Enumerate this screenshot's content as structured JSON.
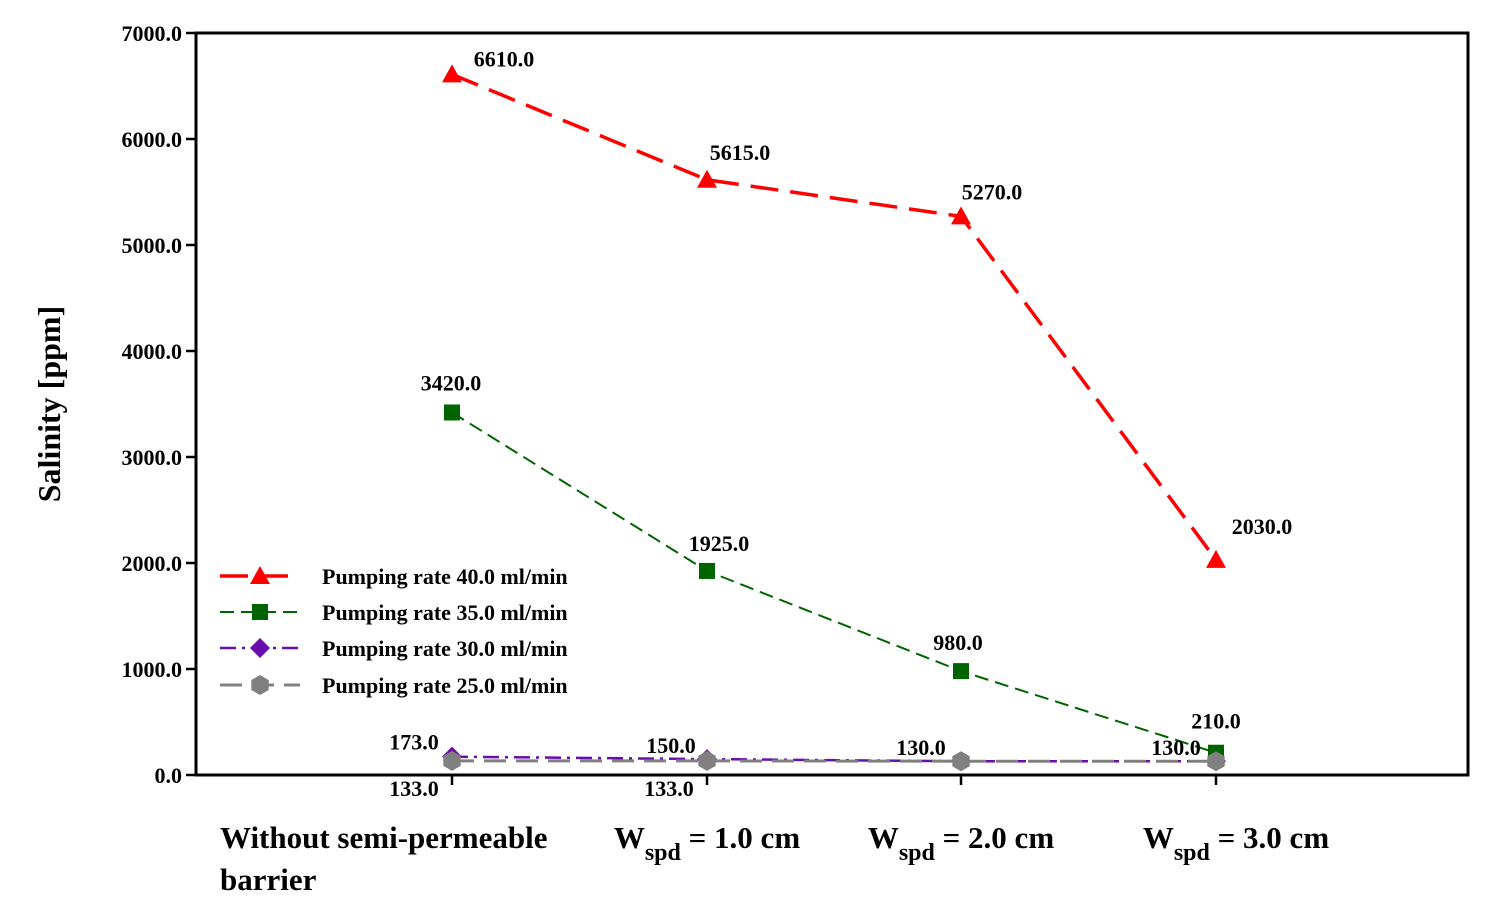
{
  "chart_data": {
    "type": "line",
    "title": "",
    "ylabel": "Salinity [ppm]",
    "ylim": [
      0,
      7000
    ],
    "yticks": [
      0,
      1000,
      2000,
      3000,
      4000,
      5000,
      6000,
      7000
    ],
    "ytick_labels": [
      "0.0",
      "1000.0",
      "2000.0",
      "3000.0",
      "4000.0",
      "5000.0",
      "6000.0",
      "7000.0"
    ],
    "grid": false,
    "legend_position": "lower-left",
    "categories": [
      {
        "lines": [
          "Without semi-permeable",
          "barrier"
        ]
      },
      {
        "main": "W",
        "sub": "spd",
        "rest": " = 1.0 cm"
      },
      {
        "main": "W",
        "sub": "spd",
        "rest": " = 2.0 cm"
      },
      {
        "main": "W",
        "sub": "spd",
        "rest": " = 3.0 cm"
      }
    ],
    "series": [
      {
        "name": "Pumping rate 40.0 ml/min",
        "values": [
          6610,
          5615,
          5270,
          2030
        ],
        "labels": [
          "6610.0",
          "5615.0",
          "5270.0",
          "2030.0"
        ],
        "color": "#ff0000",
        "marker": "triangle",
        "dash": "28,12",
        "width": 3.5
      },
      {
        "name": "Pumping rate 35.0 ml/min",
        "values": [
          3420,
          1925,
          980,
          210
        ],
        "labels": [
          "3420.0",
          "1925.0",
          "980.0",
          "210.0"
        ],
        "color": "#006400",
        "marker": "square",
        "dash": "14,7",
        "width": 2
      },
      {
        "name": "Pumping rate 30.0 ml/min",
        "values": [
          173,
          150,
          130,
          130
        ],
        "labels": [
          "173.0",
          "150.0",
          "130.0",
          "130.0"
        ],
        "color": "#6a0dad",
        "marker": "diamond",
        "dash": "16,6,3,6",
        "width": 2.5
      },
      {
        "name": "Pumping rate 25.0 ml/min",
        "values": [
          133,
          133,
          130,
          130
        ],
        "labels": [
          "133.0",
          "133.0",
          "130.0",
          "130.0"
        ],
        "color": "#808080",
        "marker": "hexagon",
        "dash": "22,10",
        "width": 3
      }
    ]
  }
}
